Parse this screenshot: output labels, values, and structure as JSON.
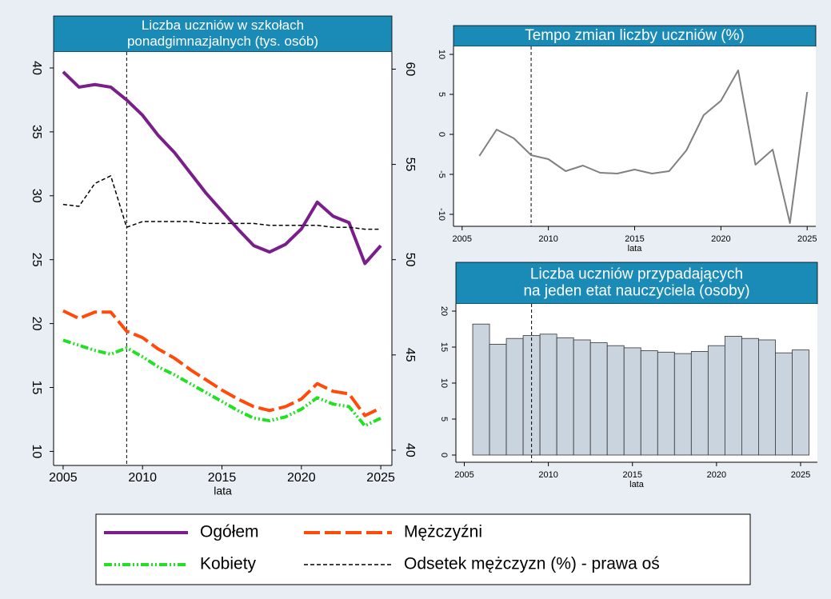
{
  "chart_data": [
    {
      "type": "line",
      "title": [
        "Liczba uczniów w szkołach",
        "ponadgimnazjalnych (tys. osób)"
      ],
      "xlabel": "lata",
      "x": [
        2005,
        2006,
        2007,
        2008,
        2009,
        2010,
        2011,
        2012,
        2013,
        2014,
        2015,
        2016,
        2017,
        2018,
        2019,
        2020,
        2021,
        2022,
        2023,
        2024,
        2025
      ],
      "xlim": [
        2004.4,
        2025.7
      ],
      "xticks": [
        2005,
        2010,
        2015,
        2020,
        2025
      ],
      "ylim": [
        8.9,
        41.25
      ],
      "yticks": [
        10,
        15,
        20,
        25,
        30,
        35,
        40
      ],
      "y2lim": [
        39.2,
        60.9
      ],
      "y2ticks": [
        40,
        45,
        50,
        55,
        60
      ],
      "vline": 2009,
      "series": [
        {
          "name": "Ogółem",
          "color": "#7a1e8c",
          "style": "solid",
          "values": [
            39.7,
            38.5,
            38.7,
            38.5,
            37.5,
            36.3,
            34.7,
            33.4,
            31.8,
            30.2,
            28.8,
            27.4,
            26.1,
            25.6,
            26.2,
            27.4,
            29.5,
            28.4,
            27.9,
            24.7,
            26.1
          ]
        },
        {
          "name": "Mężczyźni",
          "color": "#ff4a0a",
          "style": "dash",
          "values": [
            21.0,
            20.4,
            20.9,
            20.9,
            19.4,
            18.9,
            18.0,
            17.3,
            16.4,
            15.6,
            14.8,
            14.1,
            13.5,
            13.2,
            13.5,
            14.1,
            15.3,
            14.7,
            14.5,
            12.8,
            13.4
          ]
        },
        {
          "name": "Kobiety",
          "color": "#22e022",
          "style": "dashdot",
          "values": [
            18.7,
            18.3,
            17.9,
            17.6,
            18.1,
            17.4,
            16.6,
            16.0,
            15.3,
            14.6,
            13.9,
            13.2,
            12.6,
            12.4,
            12.7,
            13.3,
            14.2,
            13.7,
            13.5,
            12.0,
            12.6
          ]
        },
        {
          "name": "Odsetek mężczyzn (%) - prawa oś",
          "color": "#000000",
          "style": "thindash",
          "axis": "y2",
          "values": [
            52.9,
            52.8,
            54.0,
            54.4,
            51.7,
            52.0,
            52.0,
            52.0,
            52.0,
            51.9,
            51.9,
            51.9,
            51.9,
            51.8,
            51.8,
            51.8,
            51.8,
            51.7,
            51.7,
            51.6,
            51.6
          ]
        }
      ]
    },
    {
      "type": "line",
      "title": [
        "Tempo zmian liczby uczniów (%)"
      ],
      "xlabel": "lata",
      "x": [
        2006,
        2007,
        2008,
        2009,
        2010,
        2011,
        2012,
        2013,
        2014,
        2015,
        2016,
        2017,
        2018,
        2019,
        2020,
        2021,
        2022,
        2023,
        2024,
        2025
      ],
      "xlim": [
        2004.5,
        2025.5
      ],
      "xticks": [
        2005,
        2010,
        2015,
        2020,
        2025
      ],
      "ylim": [
        -11.5,
        11
      ],
      "yticks": [
        -10,
        -5,
        0,
        5,
        10
      ],
      "vline": 2009,
      "series": [
        {
          "color": "#808080",
          "style": "solid",
          "values": [
            -2.7,
            0.6,
            -0.5,
            -2.6,
            -3.1,
            -4.6,
            -3.9,
            -4.8,
            -4.9,
            -4.4,
            -4.9,
            -4.6,
            -2.0,
            2.4,
            4.2,
            8.0,
            -3.8,
            -1.9,
            -11.1,
            5.3
          ]
        }
      ]
    },
    {
      "type": "bar",
      "title": [
        "Liczba uczniów przypadających",
        "na jeden etat nauczyciela (osoby)"
      ],
      "xlabel": "lata",
      "x": [
        2006,
        2007,
        2008,
        2009,
        2010,
        2011,
        2012,
        2013,
        2014,
        2015,
        2016,
        2017,
        2018,
        2019,
        2020,
        2021,
        2022,
        2023,
        2024,
        2025
      ],
      "xlim": [
        2004.5,
        2026
      ],
      "xticks": [
        2005,
        2010,
        2015,
        2020,
        2025
      ],
      "ylim": [
        -1,
        21
      ],
      "yticks": [
        0,
        5,
        10,
        15,
        20
      ],
      "vline": 2009,
      "color": "#c9d4df",
      "values": [
        18.2,
        15.4,
        16.2,
        16.6,
        16.8,
        16.3,
        16.0,
        15.6,
        15.2,
        14.9,
        14.5,
        14.3,
        14.1,
        14.4,
        15.2,
        16.5,
        16.2,
        16.0,
        14.2,
        14.6
      ]
    }
  ]
}
